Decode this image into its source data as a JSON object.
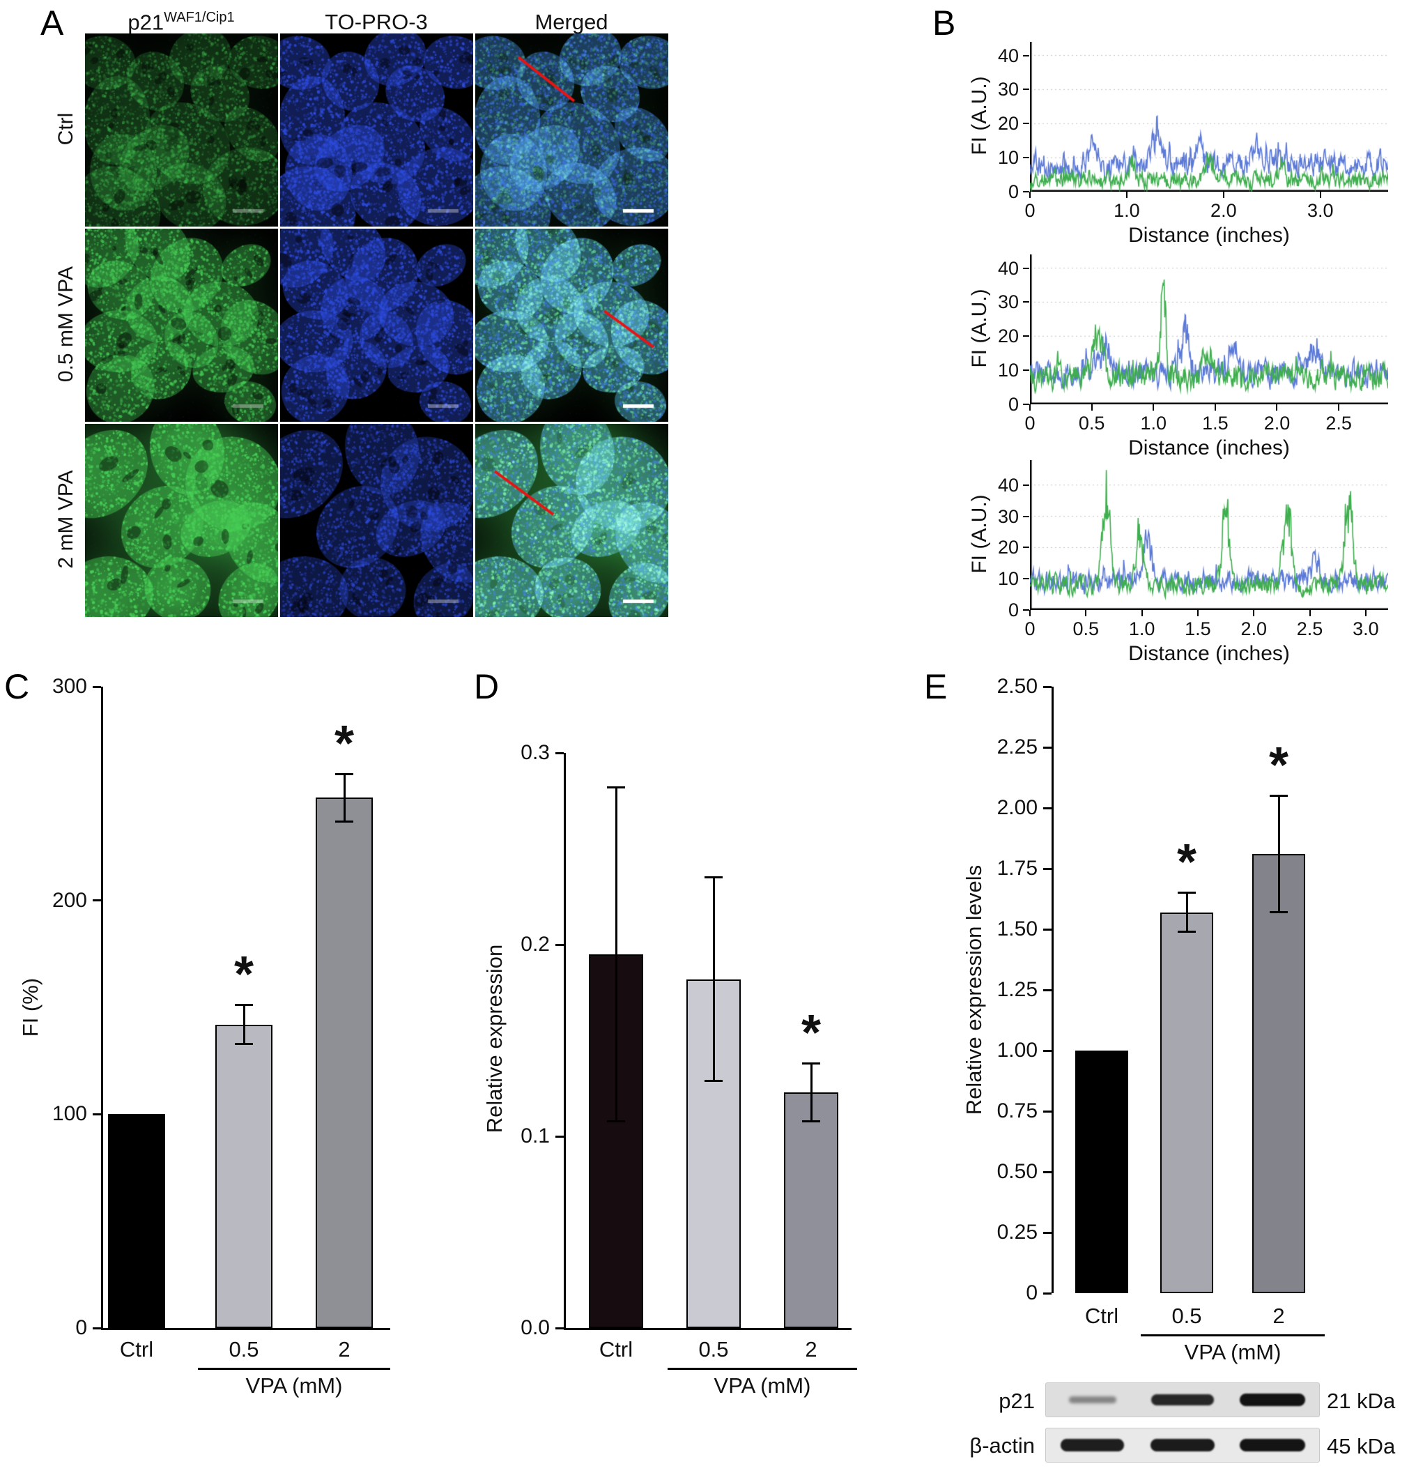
{
  "panelA": {
    "label": "A",
    "column_headers": [
      {
        "text": "p21",
        "sup": "WAF1/Cip1"
      },
      {
        "text": "TO-PRO-3",
        "sup": ""
      },
      {
        "text": "Merged",
        "sup": ""
      }
    ],
    "row_labels": [
      "Ctrl",
      "0.5 mM VPA",
      "2 mM VPA"
    ],
    "channels": [
      "p21 immunofluorescence (green)",
      "TO-PRO-3 nuclear stain (blue)",
      "merged with line-scan (red line)"
    ],
    "green_intensity_by_row": [
      "low",
      "medium",
      "high"
    ]
  },
  "panelB": {
    "label": "B"
  },
  "panelC": {
    "label": "C"
  },
  "panelD": {
    "label": "D"
  },
  "panelE": {
    "label": "E",
    "blots": {
      "rows": [
        {
          "label": "p21",
          "kda": "21 kDa",
          "band_intensities": [
            0.22,
            0.82,
            0.95
          ]
        },
        {
          "label": "β-actin",
          "kda": "45 kDa",
          "band_intensities": [
            0.88,
            0.9,
            0.95
          ]
        }
      ]
    }
  },
  "chart_data": [
    {
      "type": "line",
      "panel": "B",
      "condition": "Ctrl",
      "xlabel": "Distance (inches)",
      "ylabel": "FI (A.U.)",
      "xlim": [
        0,
        3.7
      ],
      "ylim": [
        0,
        44
      ],
      "grid": "dotted-horizontal",
      "legend": "none",
      "yticks": [
        {
          "v": 0,
          "label": "0"
        },
        {
          "v": 10,
          "label": "10"
        },
        {
          "v": 20,
          "label": "20"
        },
        {
          "v": 30,
          "label": "30"
        },
        {
          "v": 40,
          "label": "40"
        }
      ],
      "xticks": [
        {
          "v": 0,
          "label": "0"
        },
        {
          "v": 1,
          "label": "1.0"
        },
        {
          "v": 2,
          "label": "2.0"
        },
        {
          "v": 3,
          "label": "3.0"
        }
      ],
      "series": [
        {
          "name": "TO-PRO-3",
          "color": "#5b79d6",
          "baseline": 8,
          "noise": 5.5,
          "seed": 11,
          "peaks": [
            {
              "x": 0.65,
              "h": 10,
              "w": 0.05
            },
            {
              "x": 1.3,
              "h": 11,
              "w": 0.06
            },
            {
              "x": 1.75,
              "h": 8,
              "w": 0.05
            },
            {
              "x": 2.35,
              "h": 7,
              "w": 0.06
            }
          ]
        },
        {
          "name": "p21",
          "color": "#3fae4e",
          "baseline": 3.5,
          "noise": 4,
          "seed": 12,
          "peaks": [
            {
              "x": 1.05,
              "h": 6,
              "w": 0.05
            },
            {
              "x": 1.85,
              "h": 7,
              "w": 0.06
            },
            {
              "x": 2.6,
              "h": 5,
              "w": 0.05
            }
          ]
        }
      ]
    },
    {
      "type": "line",
      "panel": "B",
      "condition": "0.5 mM VPA",
      "xlabel": "Distance (inches)",
      "ylabel": "FI (A.U.)",
      "xlim": [
        0,
        2.9
      ],
      "ylim": [
        0,
        44
      ],
      "grid": "dotted-horizontal",
      "legend": "none",
      "yticks": [
        {
          "v": 0,
          "label": "0"
        },
        {
          "v": 10,
          "label": "10"
        },
        {
          "v": 20,
          "label": "20"
        },
        {
          "v": 30,
          "label": "30"
        },
        {
          "v": 40,
          "label": "40"
        }
      ],
      "xticks": [
        {
          "v": 0,
          "label": "0"
        },
        {
          "v": 0.5,
          "label": "0.5"
        },
        {
          "v": 1,
          "label": "1.0"
        },
        {
          "v": 1.5,
          "label": "1.5"
        },
        {
          "v": 2,
          "label": "2.0"
        },
        {
          "v": 2.5,
          "label": "2.5"
        }
      ],
      "series": [
        {
          "name": "TO-PRO-3",
          "color": "#5b79d6",
          "baseline": 9,
          "noise": 6,
          "seed": 21,
          "peaks": [
            {
              "x": 0.6,
              "h": 10,
              "w": 0.07
            },
            {
              "x": 1.25,
              "h": 15,
              "w": 0.05
            },
            {
              "x": 1.65,
              "h": 12,
              "w": 0.04
            },
            {
              "x": 2.3,
              "h": 10,
              "w": 0.06
            }
          ]
        },
        {
          "name": "p21",
          "color": "#3fae4e",
          "baseline": 8,
          "noise": 6,
          "seed": 22,
          "peaks": [
            {
              "x": 0.55,
              "h": 14,
              "w": 0.06
            },
            {
              "x": 1.08,
              "h": 32,
              "w": 0.03
            },
            {
              "x": 1.45,
              "h": 8,
              "w": 0.05
            }
          ]
        }
      ]
    },
    {
      "type": "line",
      "panel": "B",
      "condition": "2 mM VPA",
      "xlabel": "Distance (inches)",
      "ylabel": "FI (A.U.)",
      "xlim": [
        0,
        3.2
      ],
      "ylim": [
        0,
        48
      ],
      "grid": "dotted-horizontal",
      "legend": "none",
      "yticks": [
        {
          "v": 0,
          "label": "0"
        },
        {
          "v": 10,
          "label": "10"
        },
        {
          "v": 20,
          "label": "20"
        },
        {
          "v": 30,
          "label": "30"
        },
        {
          "v": 40,
          "label": "40"
        }
      ],
      "xticks": [
        {
          "v": 0,
          "label": "0"
        },
        {
          "v": 0.5,
          "label": "0.5"
        },
        {
          "v": 1,
          "label": "1.0"
        },
        {
          "v": 1.5,
          "label": "1.5"
        },
        {
          "v": 2,
          "label": "2.0"
        },
        {
          "v": 2.5,
          "label": "2.5"
        },
        {
          "v": 3,
          "label": "3.0"
        }
      ],
      "series": [
        {
          "name": "TO-PRO-3",
          "color": "#5b79d6",
          "baseline": 9,
          "noise": 5.5,
          "seed": 31,
          "peaks": [
            {
              "x": 1.05,
              "h": 16,
              "w": 0.05
            },
            {
              "x": 2.55,
              "h": 10,
              "w": 0.05
            }
          ]
        },
        {
          "name": "p21",
          "color": "#3fae4e",
          "baseline": 8,
          "noise": 5,
          "seed": 32,
          "peaks": [
            {
              "x": 0.68,
              "h": 36,
              "w": 0.05
            },
            {
              "x": 0.98,
              "h": 20,
              "w": 0.05
            },
            {
              "x": 1.75,
              "h": 38,
              "w": 0.04
            },
            {
              "x": 2.3,
              "h": 30,
              "w": 0.05
            },
            {
              "x": 2.85,
              "h": 34,
              "w": 0.05
            }
          ]
        }
      ]
    },
    {
      "type": "bar",
      "panel": "C",
      "ylabel": "FI (%)",
      "group_label": "VPA (mM)",
      "categories": [
        "Ctrl",
        "0.5",
        "2"
      ],
      "values": [
        100,
        142,
        248
      ],
      "errors": [
        0,
        9,
        11
      ],
      "significance": [
        "",
        "*",
        "*"
      ],
      "ylim": [
        0,
        300
      ],
      "yticks": [
        {
          "v": 0,
          "label": "0"
        },
        {
          "v": 100,
          "label": "100"
        },
        {
          "v": 200,
          "label": "200"
        },
        {
          "v": 300,
          "label": "300"
        }
      ],
      "bar_colors": [
        "#000000",
        "#b9b9c1",
        "#8f8f96"
      ]
    },
    {
      "type": "bar",
      "panel": "D",
      "ylabel": "Relative expression",
      "group_label": "VPA (mM)",
      "categories": [
        "Ctrl",
        "0.5",
        "2"
      ],
      "values": [
        0.195,
        0.182,
        0.123
      ],
      "errors": [
        0.087,
        0.053,
        0.015
      ],
      "significance": [
        "",
        "",
        "*"
      ],
      "ylim": [
        0,
        0.3
      ],
      "yticks": [
        {
          "v": 0,
          "label": "0.0"
        },
        {
          "v": 0.1,
          "label": "0.1"
        },
        {
          "v": 0.2,
          "label": "0.2"
        },
        {
          "v": 0.3,
          "label": "0.3"
        }
      ],
      "bar_colors": [
        "#170d11",
        "#cacad3",
        "#90909a"
      ]
    },
    {
      "type": "bar",
      "panel": "E",
      "ylabel": "Relative expression levels",
      "group_label": "VPA (mM)",
      "categories": [
        "Ctrl",
        "0.5",
        "2"
      ],
      "values": [
        1.0,
        1.57,
        1.81
      ],
      "errors": [
        0,
        0.08,
        0.24
      ],
      "significance": [
        "",
        "*",
        "*"
      ],
      "ylim": [
        0,
        2.5
      ],
      "yticks": [
        {
          "v": 0,
          "label": "0"
        },
        {
          "v": 0.25,
          "label": "0.25"
        },
        {
          "v": 0.5,
          "label": "0.50"
        },
        {
          "v": 0.75,
          "label": "0.75"
        },
        {
          "v": 1,
          "label": "1.00"
        },
        {
          "v": 1.25,
          "label": "1.25"
        },
        {
          "v": 1.5,
          "label": "1.50"
        },
        {
          "v": 1.75,
          "label": "1.75"
        },
        {
          "v": 2,
          "label": "2.00"
        },
        {
          "v": 2.25,
          "label": "2.25"
        },
        {
          "v": 2.5,
          "label": "2.50"
        }
      ],
      "bar_colors": [
        "#000000",
        "#a7a7b0",
        "#83838b"
      ]
    }
  ]
}
